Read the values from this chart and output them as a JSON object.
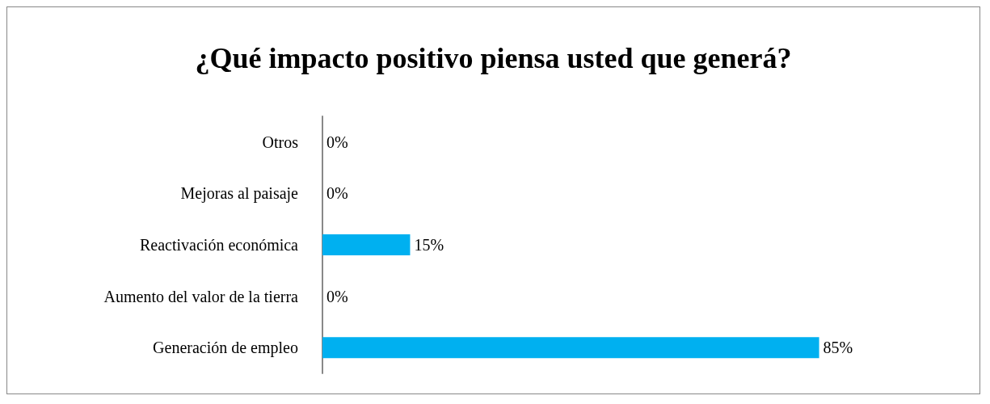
{
  "chart_data": {
    "type": "bar",
    "orientation": "horizontal",
    "title": "¿Qué impacto positivo piensa usted que generá?",
    "categories": [
      "Otros",
      "Mejoras al paisaje",
      "Reactivación económica",
      "Aumento del valor de la tierra",
      "Generación de empleo"
    ],
    "values": [
      0,
      0,
      15,
      0,
      85
    ],
    "value_labels": [
      "0%",
      "0%",
      "15%",
      "0%",
      "85%"
    ],
    "color": "#00b0f0"
  }
}
